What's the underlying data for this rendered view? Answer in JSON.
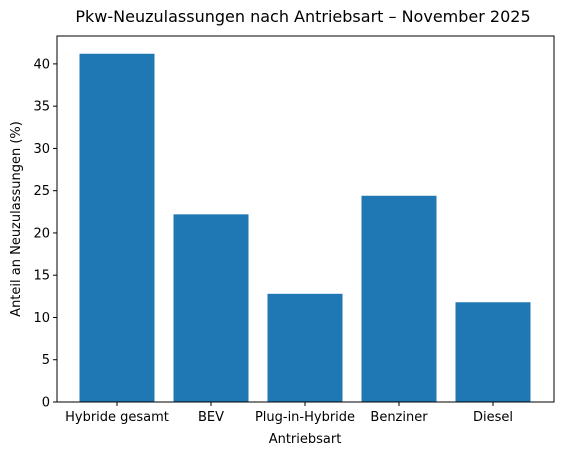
{
  "chart_data": {
    "type": "bar",
    "title": "Pkw-Neuzulassungen nach Antriebsart – November 2025",
    "xlabel": "Antriebsart",
    "ylabel": "Anteil an Neuzulassungen (%)",
    "categories": [
      "Hybride gesamt",
      "BEV",
      "Plug-in-Hybride",
      "Benziner",
      "Diesel"
    ],
    "values": [
      41.2,
      22.2,
      12.8,
      24.4,
      11.8
    ],
    "ylim": [
      0,
      43.3
    ],
    "yticks": [
      0,
      5,
      10,
      15,
      20,
      25,
      30,
      35,
      40
    ],
    "grid": false,
    "legend": "none",
    "bar_color": "#1f77b4"
  }
}
